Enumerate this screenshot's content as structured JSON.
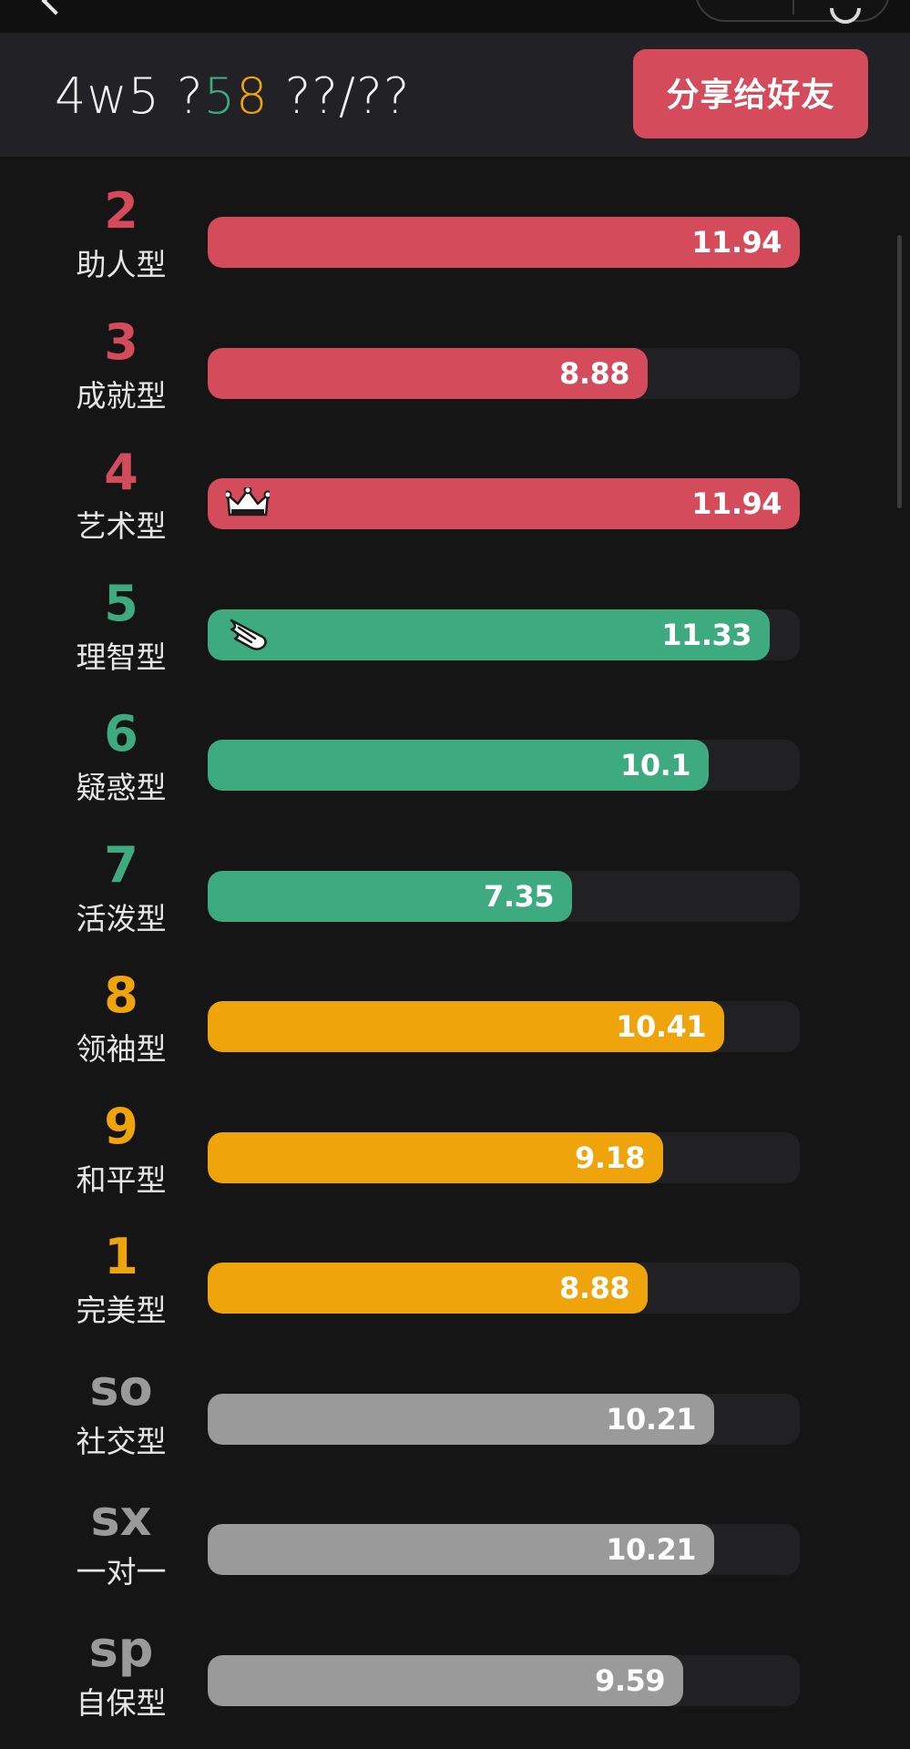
{
  "header": {
    "title_parts": [
      "4w5 ?",
      "5",
      "8",
      " ??/??"
    ],
    "share_label": "分享给好友"
  },
  "colors": {
    "red": "#d44c5b",
    "green": "#3daa80",
    "orange": "#eea40a",
    "gray": "#9a9a9a"
  },
  "scale_max": 11.94,
  "rows": [
    {
      "num": "2",
      "label": "助人型",
      "value": "11.94",
      "score": 11.94,
      "color": "red",
      "icon": ""
    },
    {
      "num": "3",
      "label": "成就型",
      "value": "8.88",
      "score": 8.88,
      "color": "red",
      "icon": ""
    },
    {
      "num": "4",
      "label": "艺术型",
      "value": "11.94",
      "score": 11.94,
      "color": "red",
      "icon": "crown-icon"
    },
    {
      "num": "5",
      "label": "理智型",
      "value": "11.33",
      "score": 11.33,
      "color": "green",
      "icon": "wing-icon"
    },
    {
      "num": "6",
      "label": "疑惑型",
      "value": "10.1",
      "score": 10.1,
      "color": "green",
      "icon": ""
    },
    {
      "num": "7",
      "label": "活泼型",
      "value": "7.35",
      "score": 7.35,
      "color": "green",
      "icon": ""
    },
    {
      "num": "8",
      "label": "领袖型",
      "value": "10.41",
      "score": 10.41,
      "color": "orange",
      "icon": ""
    },
    {
      "num": "9",
      "label": "和平型",
      "value": "9.18",
      "score": 9.18,
      "color": "orange",
      "icon": ""
    },
    {
      "num": "1",
      "label": "完美型",
      "value": "8.88",
      "score": 8.88,
      "color": "orange",
      "icon": ""
    },
    {
      "num": "so",
      "label": "社交型",
      "value": "10.21",
      "score": 10.21,
      "color": "gray",
      "icon": ""
    },
    {
      "num": "sx",
      "label": "一对一",
      "value": "10.21",
      "score": 10.21,
      "color": "gray",
      "icon": ""
    },
    {
      "num": "sp",
      "label": "自保型",
      "value": "9.59",
      "score": 9.59,
      "color": "gray",
      "icon": ""
    }
  ]
}
